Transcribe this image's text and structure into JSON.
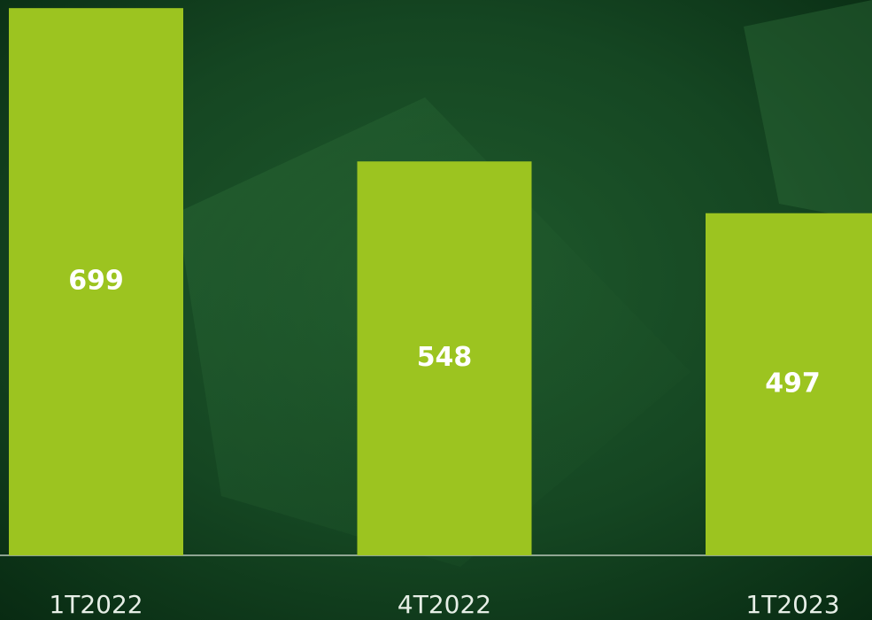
{
  "chart_data": {
    "type": "bar",
    "categories": [
      "1T2022",
      "4T2022",
      "1T2023"
    ],
    "values": [
      699,
      548,
      497
    ],
    "color": "#9cc420",
    "ylim": [
      160,
      707
    ]
  }
}
